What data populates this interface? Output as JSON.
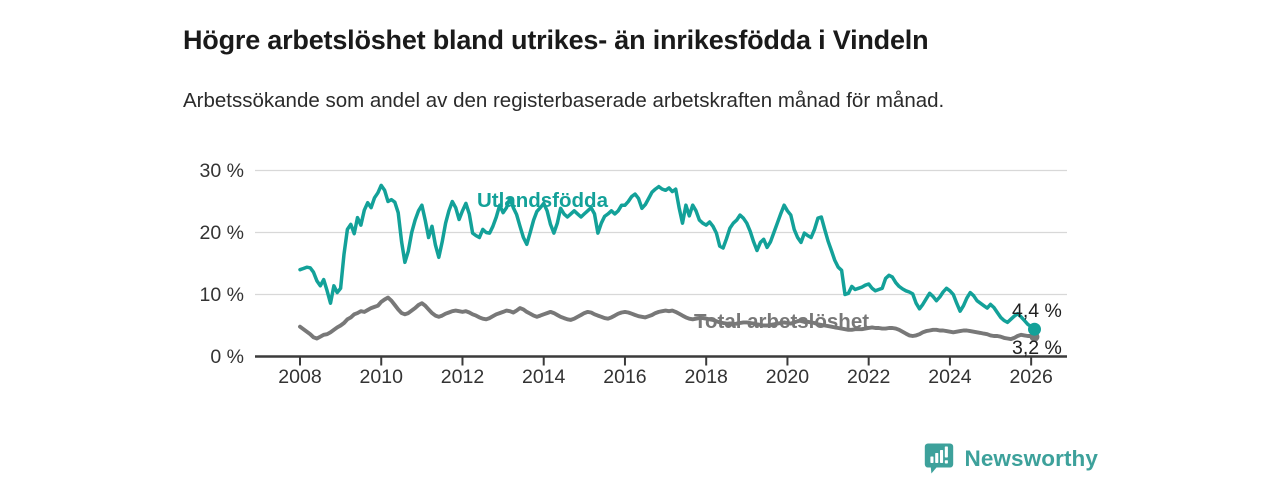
{
  "header": {
    "title": "Högre arbetslöshet bland utrikes- än inrikesfödda i Vindeln",
    "subtitle": "Arbetssökande som andel av den registerbaserade arbetskraften månad för månad."
  },
  "footer": {
    "brand": "Newsworthy",
    "brand_color": "#3da19b",
    "logo_icon": "bar-chart-speech-bubble"
  },
  "chart_data": {
    "type": "line",
    "title": "Högre arbetslöshet bland utrikes- än inrikesfödda i Vindeln",
    "subtitle": "Arbetssökande som andel av den registerbaserade arbetskraften månad för månad.",
    "x_unit": "month",
    "x_start": "2008-01",
    "x_end": "2026-02",
    "xlim": [
      2008,
      2026.9
    ],
    "ylim": [
      0,
      30
    ],
    "grid": "horizontal",
    "x_ticks": [
      2008,
      2010,
      2012,
      2014,
      2016,
      2018,
      2020,
      2022,
      2024,
      2026
    ],
    "y_ticks": [
      {
        "value": 0,
        "label": "0 %"
      },
      {
        "value": 10,
        "label": "10 %"
      },
      {
        "value": 20,
        "label": "20 %"
      },
      {
        "value": 30,
        "label": "30 %"
      }
    ],
    "legend_position": "inline-labels",
    "series": [
      {
        "name": "Utlandsfödda",
        "color": "#13a199",
        "end_label": "4,4 %",
        "end_value": 4.4,
        "values": [
          14.0,
          14.2,
          14.4,
          14.3,
          13.6,
          12.2,
          11.4,
          12.4,
          10.6,
          8.6,
          11.4,
          10.3,
          11.0,
          16.5,
          20.5,
          21.3,
          19.8,
          22.4,
          21.2,
          23.6,
          24.8,
          24.0,
          25.6,
          26.4,
          27.6,
          26.8,
          25.0,
          25.3,
          24.9,
          23.2,
          18.5,
          15.2,
          17.0,
          20.0,
          22.0,
          23.5,
          24.4,
          22.0,
          19.2,
          21.0,
          18.0,
          16.0,
          18.5,
          21.5,
          23.5,
          25.0,
          24.0,
          22.1,
          23.5,
          24.7,
          23.0,
          19.9,
          19.5,
          19.2,
          20.5,
          20.0,
          19.9,
          21.0,
          22.5,
          24.4,
          23.2,
          24.0,
          25.5,
          24.0,
          22.9,
          21.0,
          19.2,
          18.1,
          20.0,
          22.0,
          23.4,
          24.0,
          24.7,
          23.5,
          21.3,
          19.9,
          21.5,
          23.9,
          23.0,
          22.5,
          23.0,
          23.5,
          23.0,
          22.5,
          23.0,
          23.5,
          24.0,
          23.0,
          19.9,
          21.5,
          22.6,
          23.0,
          23.5,
          23.0,
          23.5,
          24.4,
          24.4,
          25.0,
          25.8,
          26.2,
          25.5,
          23.9,
          24.5,
          25.5,
          26.5,
          27.0,
          27.4,
          27.0,
          26.8,
          27.2,
          26.6,
          27.0,
          24.0,
          21.5,
          24.4,
          22.7,
          24.4,
          23.5,
          22.0,
          21.5,
          21.2,
          21.7,
          21.0,
          19.9,
          17.8,
          17.5,
          19.0,
          20.7,
          21.5,
          22.0,
          22.8,
          22.3,
          21.5,
          20.2,
          18.5,
          17.1,
          18.4,
          18.9,
          17.6,
          18.5,
          20.0,
          21.5,
          23.0,
          24.4,
          23.5,
          22.8,
          20.5,
          19.2,
          18.4,
          19.9,
          19.5,
          19.2,
          20.5,
          22.3,
          22.5,
          20.5,
          18.6,
          17.1,
          15.5,
          14.4,
          13.9,
          10.0,
          10.2,
          11.3,
          10.8,
          11.0,
          11.2,
          11.5,
          11.7,
          11.0,
          10.6,
          10.8,
          11.0,
          12.6,
          13.1,
          12.8,
          11.9,
          11.3,
          10.9,
          10.6,
          10.4,
          10.1,
          8.6,
          7.7,
          8.4,
          9.3,
          10.2,
          9.7,
          9.0,
          9.6,
          10.4,
          11.0,
          10.6,
          10.0,
          8.6,
          7.3,
          8.2,
          9.4,
          10.3,
          9.8,
          9.0,
          8.6,
          8.2,
          7.8,
          8.4,
          7.9,
          7.1,
          6.3,
          5.8,
          5.5,
          6.0,
          6.5,
          6.9,
          6.4,
          5.8,
          5.2,
          4.8,
          4.4
        ]
      },
      {
        "name": "Total arbetslöshet",
        "color": "#787878",
        "end_label": "3,2 %",
        "end_value": 3.2,
        "values": [
          4.8,
          4.4,
          4.0,
          3.6,
          3.1,
          2.9,
          3.2,
          3.5,
          3.6,
          3.9,
          4.3,
          4.7,
          5.0,
          5.4,
          6.0,
          6.3,
          6.8,
          7.0,
          7.3,
          7.2,
          7.5,
          7.8,
          8.0,
          8.2,
          8.8,
          9.2,
          9.5,
          9.0,
          8.3,
          7.6,
          7.0,
          6.8,
          7.0,
          7.4,
          7.8,
          8.3,
          8.6,
          8.2,
          7.6,
          7.0,
          6.6,
          6.4,
          6.6,
          6.9,
          7.1,
          7.3,
          7.4,
          7.3,
          7.2,
          7.3,
          7.1,
          6.8,
          6.6,
          6.3,
          6.1,
          6.0,
          6.2,
          6.5,
          6.8,
          7.0,
          7.2,
          7.4,
          7.3,
          7.1,
          7.4,
          7.8,
          7.6,
          7.2,
          6.9,
          6.6,
          6.4,
          6.6,
          6.8,
          7.0,
          7.2,
          7.0,
          6.7,
          6.4,
          6.2,
          6.0,
          5.9,
          6.1,
          6.4,
          6.7,
          7.0,
          7.2,
          7.1,
          6.8,
          6.6,
          6.4,
          6.2,
          6.1,
          6.3,
          6.6,
          6.9,
          7.1,
          7.2,
          7.1,
          6.9,
          6.7,
          6.5,
          6.4,
          6.3,
          6.5,
          6.7,
          7.0,
          7.2,
          7.3,
          7.4,
          7.3,
          7.4,
          7.2,
          6.9,
          6.6,
          6.3,
          6.1,
          6.0,
          6.1,
          6.2,
          6.2,
          6.1,
          6.0,
          5.9,
          5.7,
          5.5,
          5.4,
          5.3,
          5.2,
          5.2,
          5.3,
          5.4,
          5.5,
          5.5,
          5.4,
          5.3,
          5.2,
          5.1,
          5.0,
          5.0,
          5.1,
          5.2,
          5.3,
          5.4,
          5.5,
          5.4,
          5.3,
          5.5,
          5.7,
          5.8,
          5.7,
          5.6,
          5.5,
          5.4,
          5.2,
          5.1,
          5.0,
          4.9,
          4.8,
          4.7,
          4.6,
          4.5,
          4.4,
          4.3,
          4.3,
          4.4,
          4.4,
          4.4,
          4.5,
          4.6,
          4.7,
          4.6,
          4.6,
          4.5,
          4.5,
          4.6,
          4.6,
          4.5,
          4.3,
          4.0,
          3.7,
          3.4,
          3.3,
          3.4,
          3.6,
          3.9,
          4.1,
          4.2,
          4.3,
          4.3,
          4.2,
          4.2,
          4.1,
          4.0,
          3.9,
          4.0,
          4.1,
          4.2,
          4.2,
          4.1,
          4.0,
          3.9,
          3.8,
          3.7,
          3.6,
          3.4,
          3.3,
          3.3,
          3.2,
          3.0,
          2.9,
          2.8,
          3.0,
          3.3,
          3.5,
          3.4,
          3.3,
          3.3,
          3.2
        ]
      }
    ]
  }
}
